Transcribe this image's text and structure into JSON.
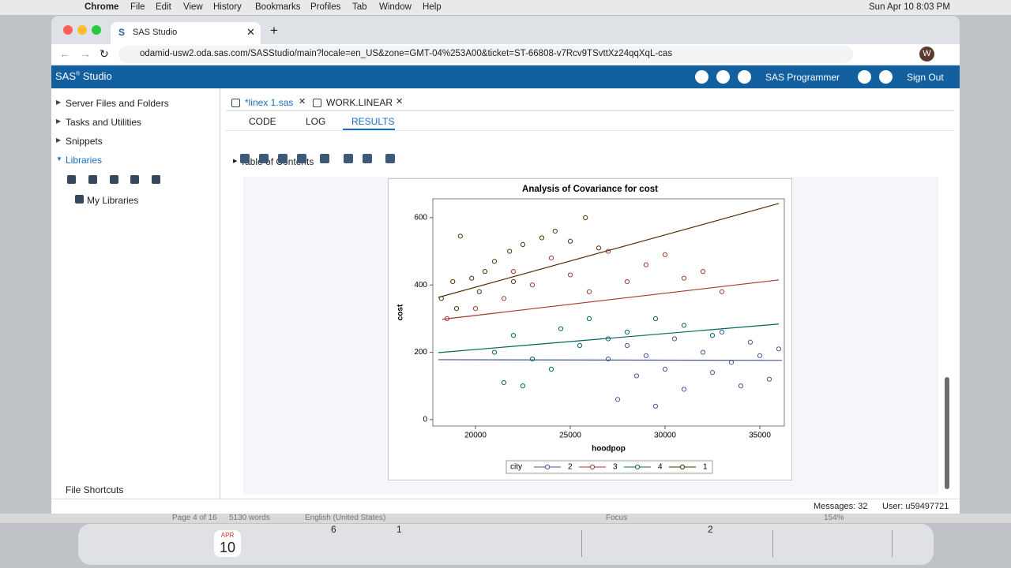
{
  "menu_bar": {
    "app": "Chrome",
    "items": [
      "File",
      "Edit",
      "View",
      "History",
      "Bookmarks",
      "Profiles",
      "Tab",
      "Window",
      "Help"
    ],
    "clock": "Sun Apr 10  8:03 PM"
  },
  "browser": {
    "tab_title": "SAS Studio",
    "url": "odamid-usw2.oda.sas.com/SASStudio/main?locale=en_US&zone=GMT-04%253A00&ticket=ST-66808-v7Rcv9TSvttXz24qqXqL-cas",
    "profile": "W"
  },
  "app_header": {
    "brand": "SAS",
    "reg": "®",
    "product": "Studio",
    "role": "SAS Programmer",
    "sign_out": "Sign Out"
  },
  "sidebar": {
    "sections": [
      "Server Files and Folders",
      "Tasks and Utilities",
      "Snippets",
      "Libraries"
    ],
    "library_item": "My Libraries",
    "footer": "File Shortcuts"
  },
  "editor": {
    "tabs": [
      "*linex 1.sas",
      "WORK.LINEAR"
    ],
    "subtabs": [
      "CODE",
      "LOG",
      "RESULTS"
    ],
    "toc": "Table of Contents"
  },
  "status": {
    "messages": "Messages: 32",
    "user": "User: u59497721"
  },
  "background_text": [
    "Page 4 of 16",
    "5130 words",
    "English (United States)",
    "Focus",
    "154%"
  ],
  "dock": {
    "calendar_month": "APR",
    "calendar_day": "10",
    "badges": [
      "6",
      "1",
      "2"
    ]
  },
  "chart_data": {
    "type": "scatter",
    "title": "Analysis of Covariance for cost",
    "x_label": "hoodpop",
    "y_label": "cost",
    "legend_title": "city",
    "xlim": [
      17750,
      36292
    ],
    "ylim": [
      -19,
      656
    ],
    "xticks": [
      20000,
      25000,
      30000,
      35000
    ],
    "yticks": [
      0,
      200,
      400,
      600
    ],
    "series": [
      {
        "name": "2",
        "color": "#445694",
        "x": [
          27000,
          27500,
          28000,
          28500,
          29000,
          29500,
          30000,
          30500,
          31000,
          32000,
          32500,
          33000,
          33500,
          34000,
          34500,
          35000,
          35500,
          36000
        ],
        "values": [
          180,
          60,
          220,
          130,
          190,
          40,
          150,
          240,
          90,
          200,
          140,
          260,
          170,
          100,
          230,
          190,
          120,
          210
        ],
        "fit_x": [
          18040,
          36170
        ],
        "fit_values": [
          178,
          176
        ]
      },
      {
        "name": "3",
        "color": "#a23a2e",
        "x": [
          18500,
          20000,
          21500,
          22000,
          23000,
          24000,
          25000,
          26000,
          27000,
          28000,
          29000,
          30000,
          31000,
          32000,
          33000
        ],
        "values": [
          300,
          330,
          360,
          440,
          400,
          480,
          430,
          380,
          500,
          410,
          460,
          490,
          420,
          440,
          380
        ],
        "fit_x": [
          18250,
          36000
        ],
        "fit_values": [
          298,
          415
        ]
      },
      {
        "name": "4",
        "color": "#01665e",
        "x": [
          21000,
          21500,
          22000,
          22500,
          23000,
          24000,
          24500,
          25500,
          26000,
          27000,
          28000,
          29500,
          31000,
          32500
        ],
        "values": [
          200,
          110,
          250,
          100,
          180,
          150,
          270,
          220,
          300,
          240,
          260,
          300,
          280,
          250
        ],
        "fit_x": [
          18040,
          36000
        ],
        "fit_values": [
          199,
          284
        ]
      },
      {
        "name": "1",
        "color": "#543005",
        "x": [
          18200,
          18800,
          19000,
          19200,
          19800,
          20200,
          20500,
          21000,
          21800,
          22000,
          22500,
          23500,
          24200,
          25000,
          25800,
          26500
        ],
        "values": [
          360,
          410,
          330,
          545,
          420,
          380,
          440,
          470,
          500,
          410,
          520,
          540,
          560,
          530,
          600,
          510
        ],
        "fit_x": [
          18040,
          36000
        ],
        "fit_values": [
          363,
          642
        ]
      }
    ]
  }
}
